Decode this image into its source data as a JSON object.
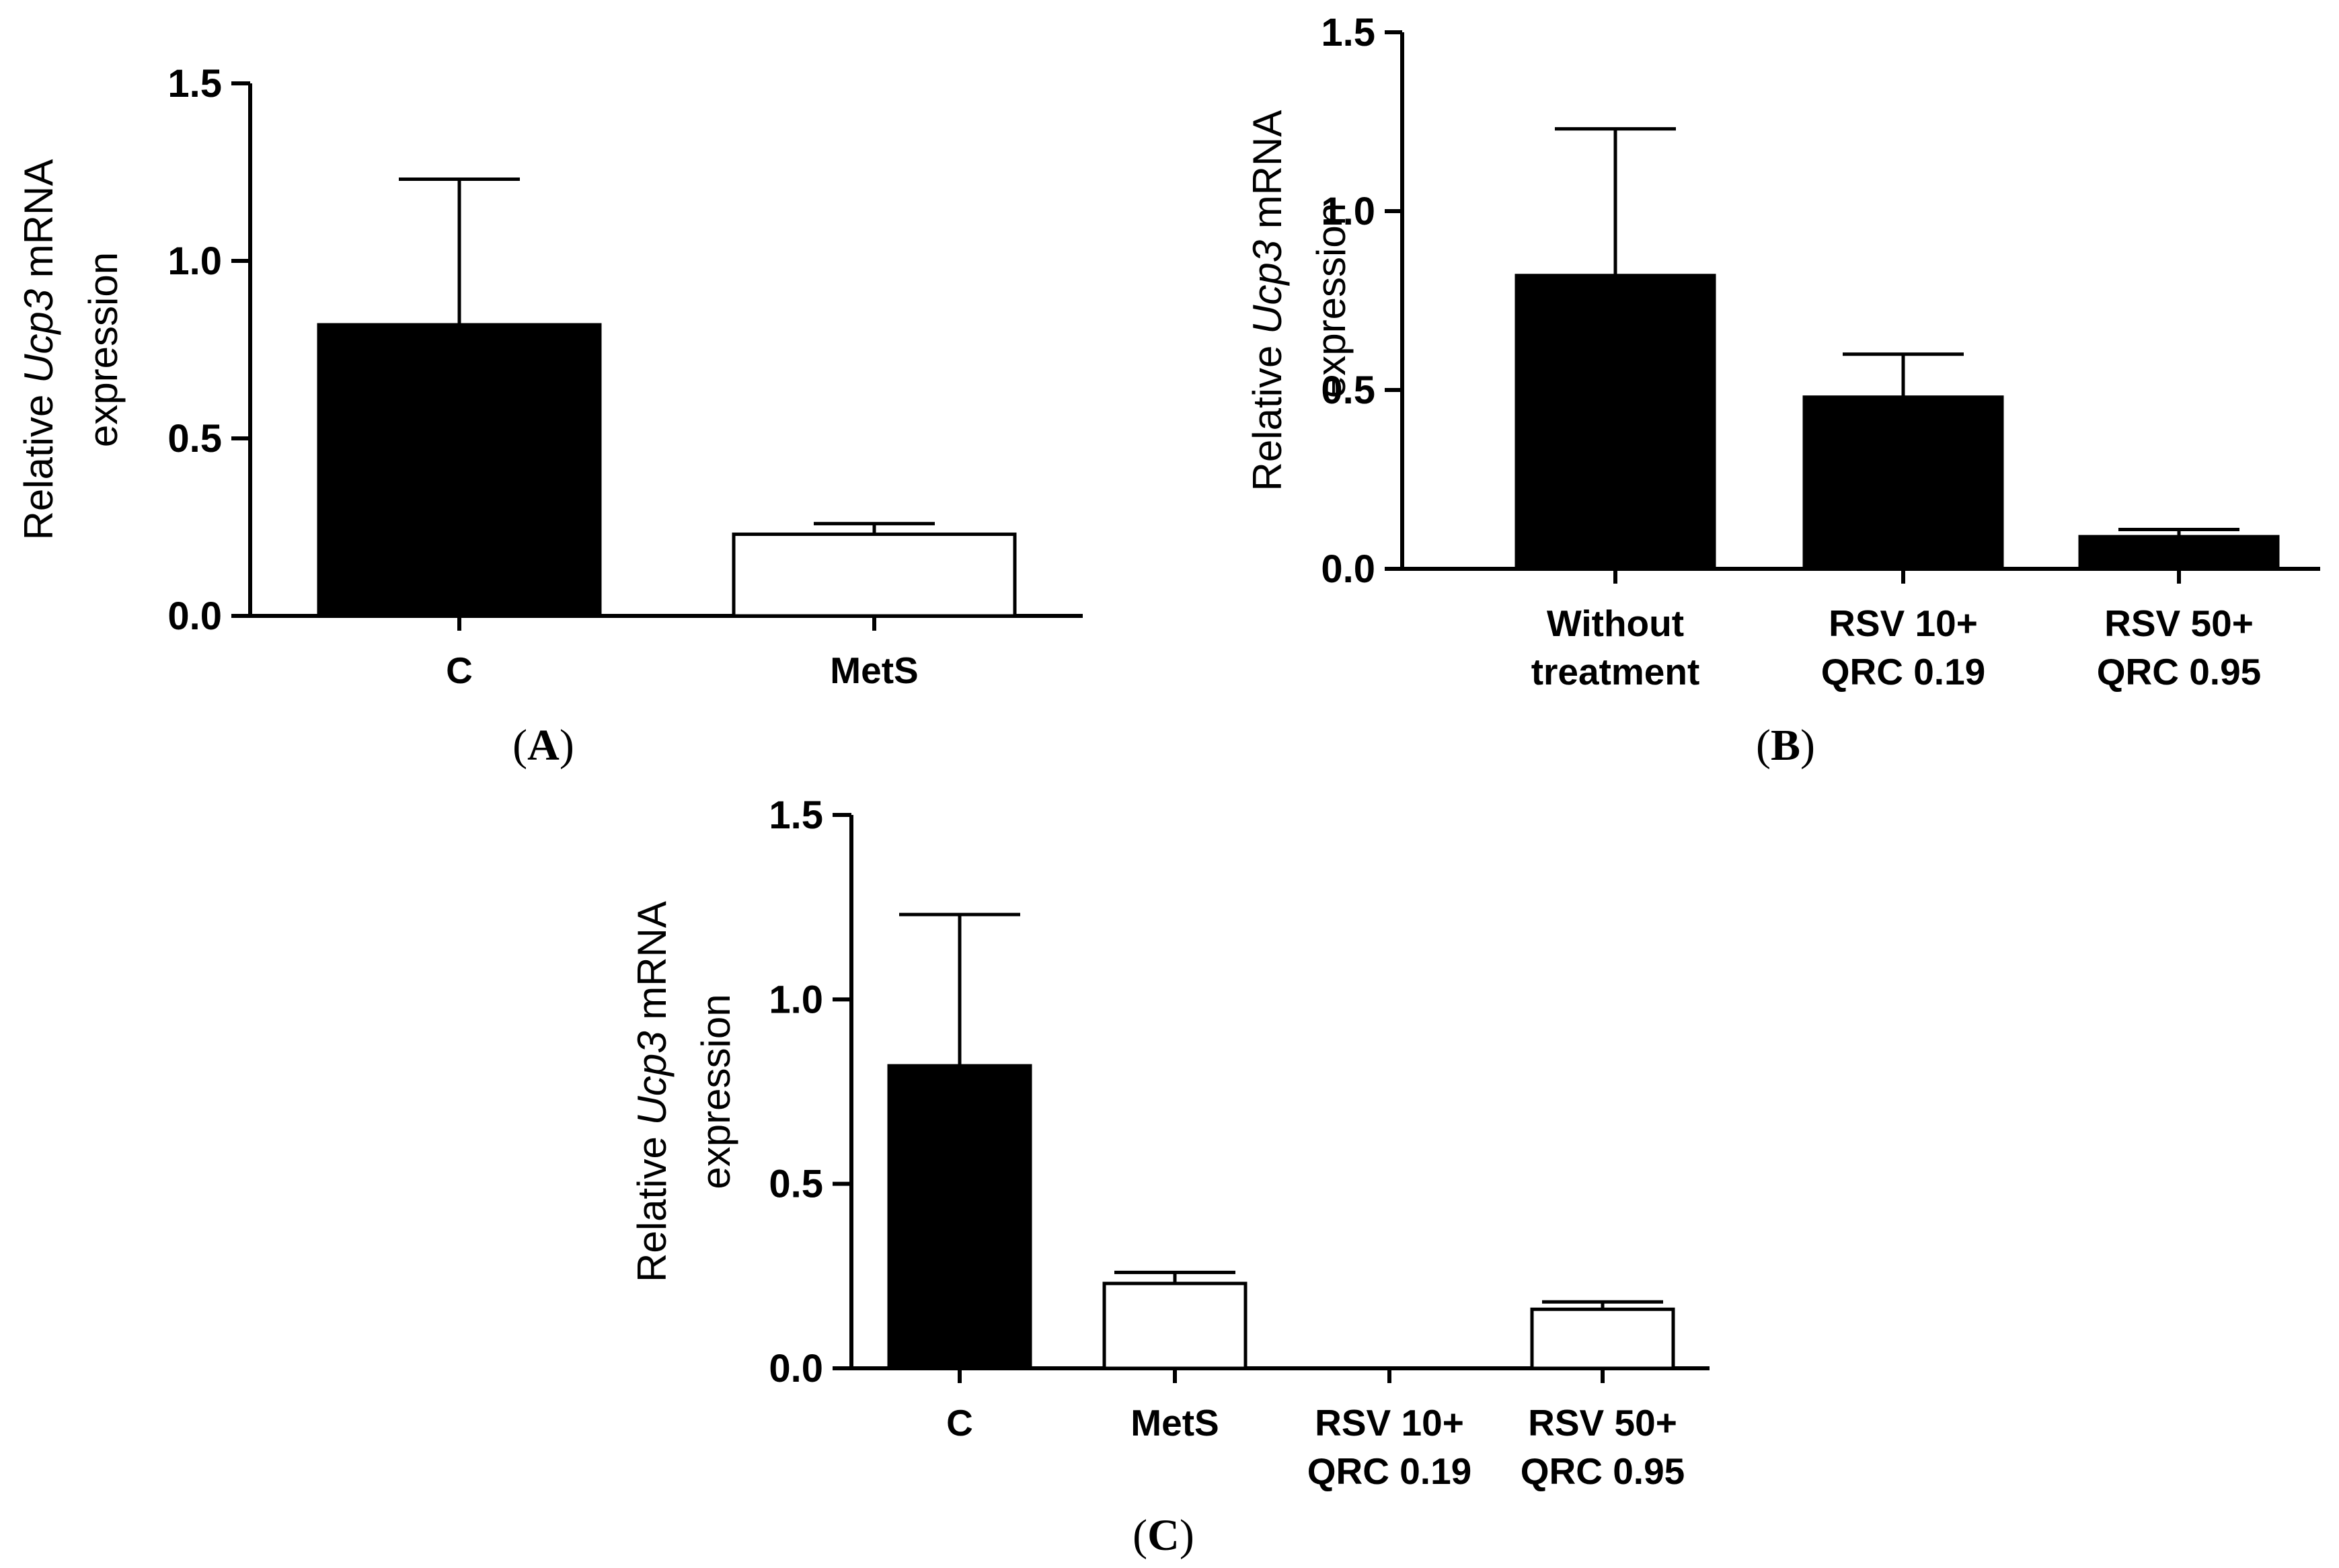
{
  "chart_data": [
    {
      "panel": "A",
      "type": "bar",
      "categories": [
        "C",
        "MetS"
      ],
      "values": [
        0.82,
        0.23
      ],
      "errors": [
        0.41,
        0.03
      ],
      "fills": [
        "#000000",
        "#ffffff"
      ],
      "ylabel_prefix": "Relative ",
      "ylabel_gene": "Ucp3",
      "ylabel_suffix": " mRNA",
      "ylabel_line2": "expression",
      "ylim": [
        0,
        1.5
      ],
      "yticks": [
        "0.0",
        "0.5",
        "1.0",
        "1.5"
      ],
      "caption_open": "(",
      "caption_letter": "A",
      "caption_close": ")"
    },
    {
      "panel": "B",
      "type": "bar",
      "categories": [
        [
          "Without",
          "treatment"
        ],
        [
          "RSV 10+",
          "QRC 0.19"
        ],
        [
          "RSV 50+",
          "QRC 0.95"
        ]
      ],
      "values": [
        0.82,
        0.48,
        0.09
      ],
      "errors": [
        0.41,
        0.12,
        0.02
      ],
      "fills": [
        "#000000",
        "#000000",
        "#000000"
      ],
      "ylabel_prefix": "Relative ",
      "ylabel_gene": "Ucp3",
      "ylabel_suffix": " mRNA",
      "ylabel_line2": "expression",
      "ylim": [
        0,
        1.5
      ],
      "yticks": [
        "0.0",
        "0.5",
        "1.0",
        "1.5"
      ],
      "caption_open": "(",
      "caption_letter": "B",
      "caption_close": ")"
    },
    {
      "panel": "C",
      "type": "bar",
      "categories": [
        "C",
        "MetS",
        [
          "RSV 10+",
          "QRC 0.19"
        ],
        [
          "RSV 50+",
          "QRC 0.95"
        ]
      ],
      "values": [
        0.82,
        0.23,
        0.0,
        0.16
      ],
      "errors": [
        0.41,
        0.03,
        0.0,
        0.02
      ],
      "fills": [
        "#000000",
        "#ffffff",
        "#ffffff",
        "#ffffff"
      ],
      "ylabel_prefix": "Relative ",
      "ylabel_gene": "Ucp3",
      "ylabel_suffix": " mRNA",
      "ylabel_line2": "expression",
      "ylim": [
        0,
        1.5
      ],
      "yticks": [
        "0.0",
        "0.5",
        "1.0",
        "1.5"
      ],
      "caption_open": "(",
      "caption_letter": "C",
      "caption_close": ")"
    }
  ]
}
